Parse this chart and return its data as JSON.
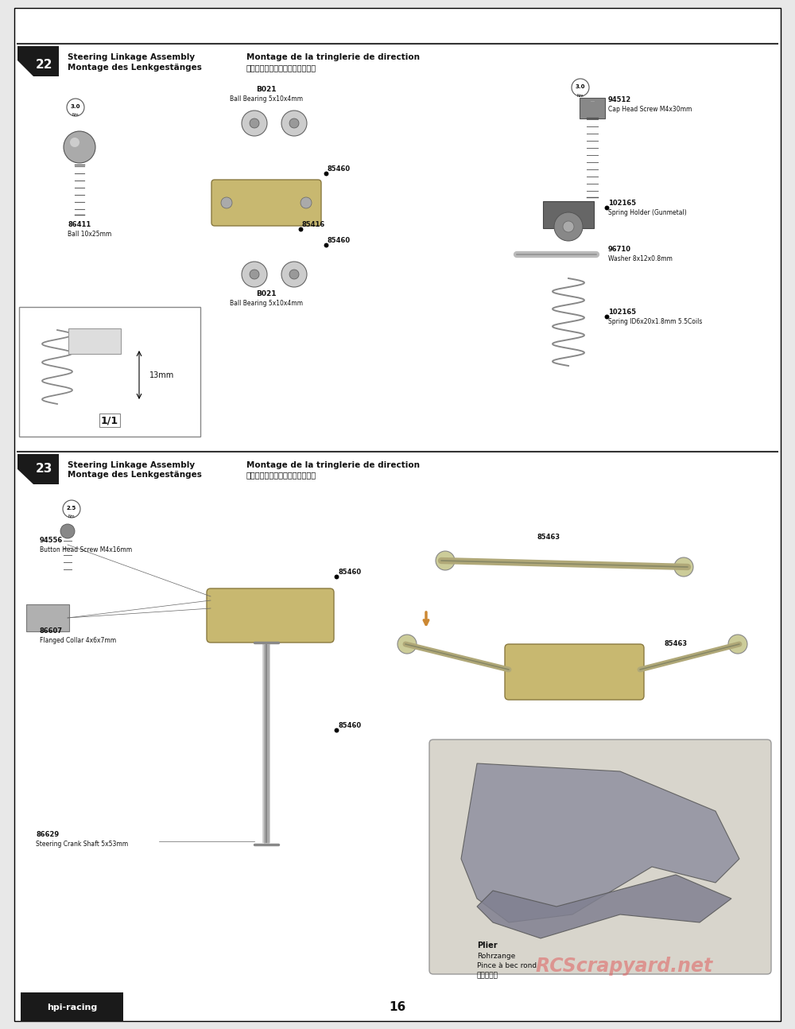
{
  "page_num": "16",
  "bg_color": "#e8e8e8",
  "paper_color": "#ffffff",
  "border_color": "#000000",
  "title_step22": "22",
  "title_step23": "23",
  "heading22_en": "Steering Linkage Assembly",
  "heading22_fr": "Montage de la tringlerie de direction",
  "heading22_de": "Montage des Lenkgestänges",
  "heading22_jp": "ステアリングリンケージの組立て",
  "heading23_en": "Steering Linkage Assembly",
  "heading23_fr": "Montage de la tringlerie de direction",
  "heading23_de": "Montage des Lenkgestänges",
  "heading23_jp": "ステアリングリンケージの組立て",
  "watermark": "RCScrapyard.net",
  "watermark_color": "#e06060",
  "logo_text": "hpi-racing",
  "footer_line": "16",
  "annotation_13mm": "13mm",
  "scale_22": "1/1",
  "torque_22a": "3.0",
  "torque_22b": "3.0",
  "torque_23": "2.5"
}
